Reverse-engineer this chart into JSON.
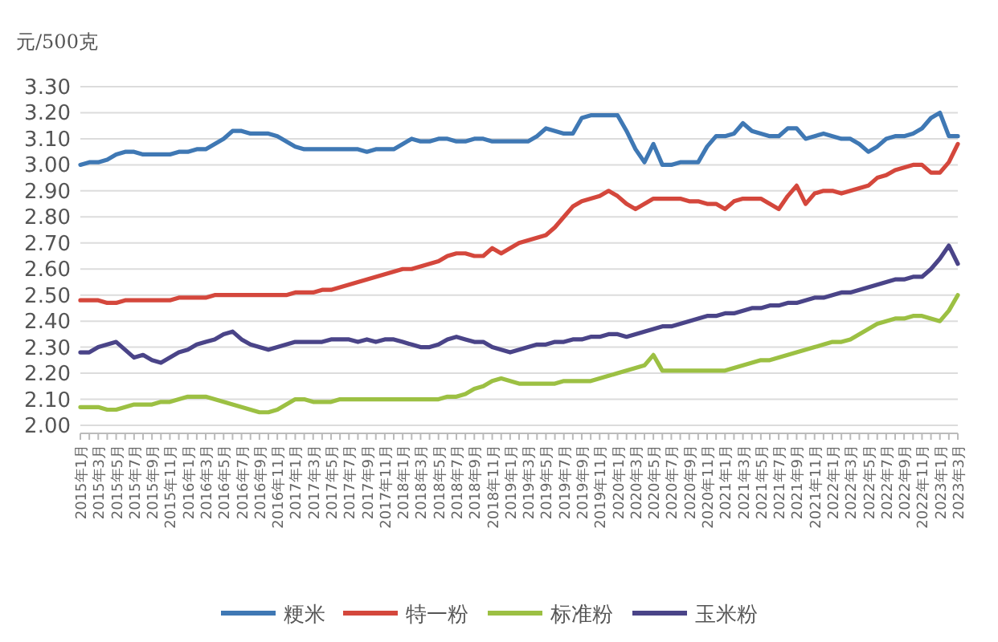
{
  "chart_data": {
    "type": "line",
    "ylabel": "元/500克",
    "categories": [
      "2015年1月",
      null,
      "2015年3月",
      null,
      "2015年5月",
      null,
      "2015年7月",
      null,
      "2015年9月",
      null,
      "2015年11月",
      null,
      "2016年1月",
      null,
      "2016年3月",
      null,
      "2016年5月",
      null,
      "2016年7月",
      null,
      "2016年9月",
      null,
      "2016年11月",
      null,
      "2017年1月",
      null,
      "2017年3月",
      null,
      "2017年5月",
      null,
      "2017年7月",
      null,
      "2017年9月",
      null,
      "2017年11月",
      null,
      "2018年1月",
      null,
      "2018年3月",
      null,
      "2018年5月",
      null,
      "2018年7月",
      null,
      "2018年9月",
      null,
      "2018年11月",
      null,
      "2019年1月",
      null,
      "2019年3月",
      null,
      "2019年5月",
      null,
      "2019年7月",
      null,
      "2019年9月",
      null,
      "2019年11月",
      null,
      "2020年1月",
      null,
      "2020年3月",
      null,
      "2020年5月",
      null,
      "2020年7月",
      null,
      "2020年9月",
      null,
      "2020年11月",
      null,
      "2021年1月",
      null,
      "2021年3月",
      null,
      "2021年5月",
      null,
      "2021年7月",
      null,
      "2021年9月",
      null,
      "2021年11月",
      null,
      "2022年1月",
      null,
      "2022年3月",
      null,
      "2022年5月",
      null,
      "2022年7月",
      null,
      "2022年9月",
      null,
      "2022年11月",
      null,
      "2023年1月",
      null,
      "2023年3月"
    ],
    "ylim": [
      2.0,
      3.3
    ],
    "yticks": [
      {
        "value": 2.0,
        "label": "2.00"
      },
      {
        "value": 2.1,
        "label": "2.10"
      },
      {
        "value": 2.2,
        "label": "2.20"
      },
      {
        "value": 2.3,
        "label": "2.30"
      },
      {
        "value": 2.4,
        "label": "2.40"
      },
      {
        "value": 2.5,
        "label": "2.50"
      },
      {
        "value": 2.6,
        "label": "2.60"
      },
      {
        "value": 2.7,
        "label": "2.70"
      },
      {
        "value": 2.8,
        "label": "2.80"
      },
      {
        "value": 2.9,
        "label": "2.90"
      },
      {
        "value": 3.0,
        "label": "3.00"
      },
      {
        "value": 3.1,
        "label": "3.10"
      },
      {
        "value": 3.2,
        "label": "3.20"
      },
      {
        "value": 3.3,
        "label": "3.30"
      }
    ],
    "grid": "y",
    "legend": "bottom",
    "marker": "none",
    "line_style": "solid",
    "series": [
      {
        "name": "粳米",
        "color": "#3f78b4",
        "values": [
          3.0,
          3.01,
          3.01,
          3.02,
          3.04,
          3.05,
          3.05,
          3.04,
          3.04,
          3.04,
          3.04,
          3.05,
          3.05,
          3.06,
          3.06,
          3.08,
          3.1,
          3.13,
          3.13,
          3.12,
          3.12,
          3.12,
          3.11,
          3.09,
          3.07,
          3.06,
          3.06,
          3.06,
          3.06,
          3.06,
          3.06,
          3.06,
          3.05,
          3.06,
          3.06,
          3.06,
          3.08,
          3.1,
          3.09,
          3.09,
          3.1,
          3.1,
          3.09,
          3.09,
          3.1,
          3.1,
          3.09,
          3.09,
          3.09,
          3.09,
          3.09,
          3.11,
          3.14,
          3.13,
          3.12,
          3.12,
          3.18,
          3.19,
          3.19,
          3.19,
          3.19,
          3.13,
          3.06,
          3.01,
          3.08,
          3.0,
          3.0,
          3.01,
          3.01,
          3.01,
          3.07,
          3.11,
          3.11,
          3.12,
          3.16,
          3.13,
          3.12,
          3.11,
          3.11,
          3.14,
          3.14,
          3.1,
          3.11,
          3.12,
          3.11,
          3.1,
          3.1,
          3.08,
          3.05,
          3.07,
          3.1,
          3.11,
          3.11,
          3.12,
          3.14,
          3.18,
          3.2,
          3.11,
          3.11
        ]
      },
      {
        "name": "特一粉",
        "color": "#d4473c",
        "values": [
          2.48,
          2.48,
          2.48,
          2.47,
          2.47,
          2.48,
          2.48,
          2.48,
          2.48,
          2.48,
          2.48,
          2.49,
          2.49,
          2.49,
          2.49,
          2.5,
          2.5,
          2.5,
          2.5,
          2.5,
          2.5,
          2.5,
          2.5,
          2.5,
          2.51,
          2.51,
          2.51,
          2.52,
          2.52,
          2.53,
          2.54,
          2.55,
          2.56,
          2.57,
          2.58,
          2.59,
          2.6,
          2.6,
          2.61,
          2.62,
          2.63,
          2.65,
          2.66,
          2.66,
          2.65,
          2.65,
          2.68,
          2.66,
          2.68,
          2.7,
          2.71,
          2.72,
          2.73,
          2.76,
          2.8,
          2.84,
          2.86,
          2.87,
          2.88,
          2.9,
          2.88,
          2.85,
          2.83,
          2.85,
          2.87,
          2.87,
          2.87,
          2.87,
          2.86,
          2.86,
          2.85,
          2.85,
          2.83,
          2.86,
          2.87,
          2.87,
          2.87,
          2.85,
          2.83,
          2.88,
          2.92,
          2.85,
          2.89,
          2.9,
          2.9,
          2.89,
          2.9,
          2.91,
          2.92,
          2.95,
          2.96,
          2.98,
          2.99,
          3.0,
          3.0,
          2.97,
          2.97,
          3.01,
          3.08
        ]
      },
      {
        "name": "标准粉",
        "color": "#9cc043",
        "values": [
          2.07,
          2.07,
          2.07,
          2.06,
          2.06,
          2.07,
          2.08,
          2.08,
          2.08,
          2.09,
          2.09,
          2.1,
          2.11,
          2.11,
          2.11,
          2.1,
          2.09,
          2.08,
          2.07,
          2.06,
          2.05,
          2.05,
          2.06,
          2.08,
          2.1,
          2.1,
          2.09,
          2.09,
          2.09,
          2.1,
          2.1,
          2.1,
          2.1,
          2.1,
          2.1,
          2.1,
          2.1,
          2.1,
          2.1,
          2.1,
          2.1,
          2.11,
          2.11,
          2.12,
          2.14,
          2.15,
          2.17,
          2.18,
          2.17,
          2.16,
          2.16,
          2.16,
          2.16,
          2.16,
          2.17,
          2.17,
          2.17,
          2.17,
          2.18,
          2.19,
          2.2,
          2.21,
          2.22,
          2.23,
          2.27,
          2.21,
          2.21,
          2.21,
          2.21,
          2.21,
          2.21,
          2.21,
          2.21,
          2.22,
          2.23,
          2.24,
          2.25,
          2.25,
          2.26,
          2.27,
          2.28,
          2.29,
          2.3,
          2.31,
          2.32,
          2.32,
          2.33,
          2.35,
          2.37,
          2.39,
          2.4,
          2.41,
          2.41,
          2.42,
          2.42,
          2.41,
          2.4,
          2.44,
          2.5
        ]
      },
      {
        "name": "玉米粉",
        "color": "#4a4488",
        "values": [
          2.28,
          2.28,
          2.3,
          2.31,
          2.32,
          2.29,
          2.26,
          2.27,
          2.25,
          2.24,
          2.26,
          2.28,
          2.29,
          2.31,
          2.32,
          2.33,
          2.35,
          2.36,
          2.33,
          2.31,
          2.3,
          2.29,
          2.3,
          2.31,
          2.32,
          2.32,
          2.32,
          2.32,
          2.33,
          2.33,
          2.33,
          2.32,
          2.33,
          2.32,
          2.33,
          2.33,
          2.32,
          2.31,
          2.3,
          2.3,
          2.31,
          2.33,
          2.34,
          2.33,
          2.32,
          2.32,
          2.3,
          2.29,
          2.28,
          2.29,
          2.3,
          2.31,
          2.31,
          2.32,
          2.32,
          2.33,
          2.33,
          2.34,
          2.34,
          2.35,
          2.35,
          2.34,
          2.35,
          2.36,
          2.37,
          2.38,
          2.38,
          2.39,
          2.4,
          2.41,
          2.42,
          2.42,
          2.43,
          2.43,
          2.44,
          2.45,
          2.45,
          2.46,
          2.46,
          2.47,
          2.47,
          2.48,
          2.49,
          2.49,
          2.5,
          2.51,
          2.51,
          2.52,
          2.53,
          2.54,
          2.55,
          2.56,
          2.56,
          2.57,
          2.57,
          2.6,
          2.64,
          2.69,
          2.62
        ]
      }
    ]
  }
}
